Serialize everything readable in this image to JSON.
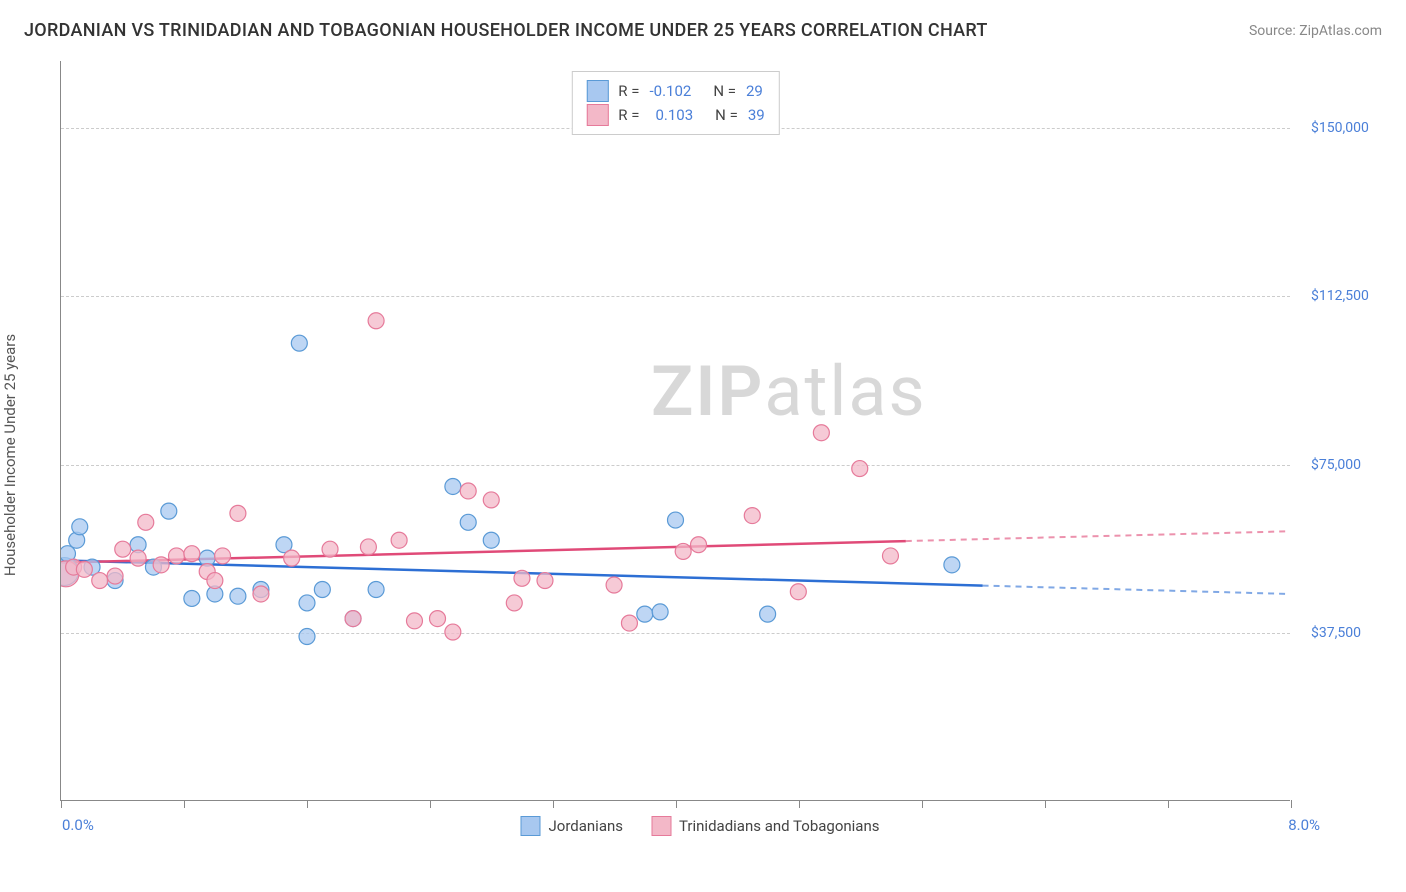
{
  "title": "JORDANIAN VS TRINIDADIAN AND TOBAGONIAN HOUSEHOLDER INCOME UNDER 25 YEARS CORRELATION CHART",
  "source": "Source: ZipAtlas.com",
  "chart": {
    "type": "scatter",
    "ylabel": "Householder Income Under 25 years",
    "ylim": [
      0,
      165000
    ],
    "xlim": [
      0.0,
      8.0
    ],
    "x_min_label": "0.0%",
    "x_max_label": "8.0%",
    "y_ticks": [
      37500,
      75000,
      112500,
      150000
    ],
    "y_tick_labels": [
      "$37,500",
      "$75,000",
      "$112,500",
      "$150,000"
    ],
    "x_tick_positions": [
      0.0,
      0.8,
      1.6,
      2.4,
      3.2,
      4.0,
      4.8,
      5.6,
      6.4,
      7.2,
      8.0
    ],
    "background_color": "#ffffff",
    "grid_color": "#cccccc",
    "watermark": {
      "zip": "ZIP",
      "atlas": "atlas"
    },
    "series": [
      {
        "name": "Jordanians",
        "label": "Jordanians",
        "marker_fill": "#a8c8f0",
        "marker_stroke": "#5a9ad6",
        "marker_opacity": 0.75,
        "marker_radius": 8,
        "line_color": "#2d6fd4",
        "r_value": "-0.102",
        "n_value": "29",
        "trend": {
          "x1": 0.0,
          "y1": 53500,
          "x2": 8.0,
          "y2": 46000
        },
        "trend_solid_max_x": 6.0,
        "points": [
          {
            "x": 0.02,
            "y": 51000,
            "r": 14
          },
          {
            "x": 0.04,
            "y": 55000
          },
          {
            "x": 0.1,
            "y": 58000
          },
          {
            "x": 0.12,
            "y": 61000
          },
          {
            "x": 0.2,
            "y": 52000
          },
          {
            "x": 0.35,
            "y": 49000
          },
          {
            "x": 0.5,
            "y": 57000
          },
          {
            "x": 0.6,
            "y": 52000
          },
          {
            "x": 0.7,
            "y": 64500
          },
          {
            "x": 0.85,
            "y": 45000
          },
          {
            "x": 0.95,
            "y": 54000
          },
          {
            "x": 1.0,
            "y": 46000
          },
          {
            "x": 1.15,
            "y": 45500
          },
          {
            "x": 1.3,
            "y": 47000
          },
          {
            "x": 1.45,
            "y": 57000
          },
          {
            "x": 1.6,
            "y": 44000
          },
          {
            "x": 1.55,
            "y": 102000
          },
          {
            "x": 1.6,
            "y": 36500
          },
          {
            "x": 1.7,
            "y": 47000
          },
          {
            "x": 1.9,
            "y": 40500
          },
          {
            "x": 2.05,
            "y": 47000
          },
          {
            "x": 2.55,
            "y": 70000
          },
          {
            "x": 2.65,
            "y": 62000
          },
          {
            "x": 2.8,
            "y": 58000
          },
          {
            "x": 3.8,
            "y": 41500
          },
          {
            "x": 3.9,
            "y": 42000
          },
          {
            "x": 4.0,
            "y": 62500
          },
          {
            "x": 4.6,
            "y": 41500
          },
          {
            "x": 5.8,
            "y": 52500
          }
        ]
      },
      {
        "name": "Trinidadians and Tobagonians",
        "label": "Trinidadians and Tobagonians",
        "marker_fill": "#f3b8c8",
        "marker_stroke": "#e67a9a",
        "marker_opacity": 0.75,
        "marker_radius": 8,
        "line_color": "#e04a78",
        "r_value": "0.103",
        "n_value": "39",
        "trend": {
          "x1": 0.0,
          "y1": 53000,
          "x2": 8.0,
          "y2": 60000
        },
        "trend_solid_max_x": 5.5,
        "points": [
          {
            "x": 0.03,
            "y": 50500,
            "r": 13
          },
          {
            "x": 0.08,
            "y": 52000
          },
          {
            "x": 0.15,
            "y": 51500
          },
          {
            "x": 0.25,
            "y": 49000
          },
          {
            "x": 0.35,
            "y": 50000
          },
          {
            "x": 0.4,
            "y": 56000
          },
          {
            "x": 0.5,
            "y": 54000
          },
          {
            "x": 0.55,
            "y": 62000
          },
          {
            "x": 0.65,
            "y": 52500
          },
          {
            "x": 0.75,
            "y": 54500
          },
          {
            "x": 0.85,
            "y": 55000
          },
          {
            "x": 0.95,
            "y": 51000
          },
          {
            "x": 1.0,
            "y": 49000
          },
          {
            "x": 1.05,
            "y": 54500
          },
          {
            "x": 1.15,
            "y": 64000
          },
          {
            "x": 1.3,
            "y": 46000
          },
          {
            "x": 1.5,
            "y": 54000
          },
          {
            "x": 1.75,
            "y": 56000
          },
          {
            "x": 1.9,
            "y": 40500
          },
          {
            "x": 2.0,
            "y": 56500
          },
          {
            "x": 2.05,
            "y": 107000
          },
          {
            "x": 2.2,
            "y": 58000
          },
          {
            "x": 2.3,
            "y": 40000
          },
          {
            "x": 2.45,
            "y": 40500
          },
          {
            "x": 2.55,
            "y": 37500
          },
          {
            "x": 2.65,
            "y": 69000
          },
          {
            "x": 2.8,
            "y": 67000
          },
          {
            "x": 2.95,
            "y": 44000
          },
          {
            "x": 3.0,
            "y": 49500
          },
          {
            "x": 3.15,
            "y": 49000
          },
          {
            "x": 3.6,
            "y": 48000
          },
          {
            "x": 3.7,
            "y": 39500
          },
          {
            "x": 4.05,
            "y": 55500
          },
          {
            "x": 4.15,
            "y": 57000
          },
          {
            "x": 4.5,
            "y": 63500
          },
          {
            "x": 4.8,
            "y": 46500
          },
          {
            "x": 4.95,
            "y": 82000
          },
          {
            "x": 5.2,
            "y": 74000
          },
          {
            "x": 5.4,
            "y": 54500
          }
        ]
      }
    ],
    "legend_top": {
      "r_label": "R =",
      "n_label": "N ="
    },
    "legend_bottom_labels": [
      "Jordanians",
      "Trinidadians and Tobagonians"
    ]
  }
}
